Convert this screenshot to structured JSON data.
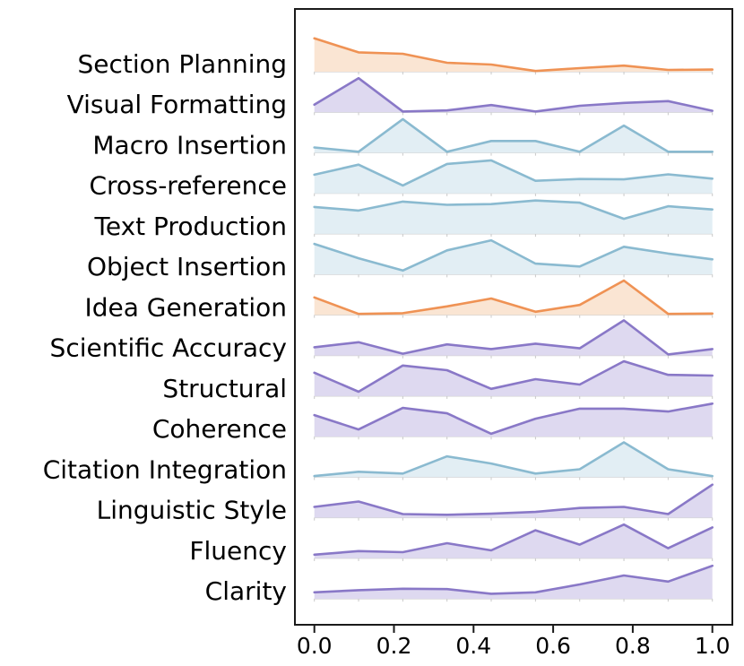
{
  "chart_data": {
    "type": "area",
    "variant": "ridgeline",
    "title": "",
    "xlabel": "",
    "ylabel": "",
    "xlim": [
      0,
      1
    ],
    "grid": false,
    "legend": "none",
    "x": [
      0,
      0.1111,
      0.2222,
      0.3333,
      0.4444,
      0.5556,
      0.6667,
      0.7778,
      0.8889,
      1.0
    ],
    "x_tick_values": [
      0,
      0.2,
      0.4,
      0.6,
      0.8,
      1.0
    ],
    "x_tick_labels": [
      "0.0",
      "0.2",
      "0.4",
      "0.6",
      "0.8",
      "1.0"
    ],
    "categories": [
      "Section Planning",
      "Visual Formatting",
      "Macro Insertion",
      "Cross-reference",
      "Text Production",
      "Object Insertion",
      "Idea Generation",
      "Scientific Accuracy",
      "Structural",
      "Coherence",
      "Citation Integration",
      "Linguistic Style",
      "Fluency",
      "Clarity"
    ],
    "series": [
      {
        "name": "Section Planning",
        "color": "orange",
        "values": [
          0.93,
          0.54,
          0.5,
          0.25,
          0.2,
          0.02,
          0.1,
          0.17,
          0.05,
          0.06
        ]
      },
      {
        "name": "Visual Formatting",
        "color": "purple",
        "values": [
          0.21,
          0.95,
          0.02,
          0.05,
          0.2,
          0.02,
          0.18,
          0.26,
          0.31,
          0.04
        ]
      },
      {
        "name": "Macro Insertion",
        "color": "blue",
        "values": [
          0.15,
          0.03,
          0.94,
          0.03,
          0.33,
          0.33,
          0.03,
          0.76,
          0.03,
          0.03
        ]
      },
      {
        "name": "Cross-reference",
        "color": "blue",
        "values": [
          0.52,
          0.8,
          0.22,
          0.82,
          0.92,
          0.35,
          0.4,
          0.39,
          0.53,
          0.41
        ]
      },
      {
        "name": "Text Production",
        "color": "blue",
        "values": [
          0.75,
          0.65,
          0.9,
          0.81,
          0.83,
          0.93,
          0.87,
          0.42,
          0.77,
          0.68
        ]
      },
      {
        "name": "Object Insertion",
        "color": "blue",
        "values": [
          0.85,
          0.45,
          0.11,
          0.67,
          0.95,
          0.3,
          0.22,
          0.77,
          0.58,
          0.42
        ]
      },
      {
        "name": "Idea Generation",
        "color": "orange",
        "values": [
          0.49,
          0.03,
          0.05,
          0.24,
          0.46,
          0.09,
          0.28,
          0.96,
          0.03,
          0.04
        ]
      },
      {
        "name": "Scientific Accuracy",
        "color": "purple",
        "values": [
          0.23,
          0.37,
          0.05,
          0.31,
          0.18,
          0.33,
          0.2,
          0.98,
          0.03,
          0.18
        ]
      },
      {
        "name": "Structural",
        "color": "purple",
        "values": [
          0.65,
          0.12,
          0.85,
          0.72,
          0.2,
          0.47,
          0.32,
          0.97,
          0.59,
          0.57
        ]
      },
      {
        "name": "Coherence",
        "color": "purple",
        "values": [
          0.6,
          0.2,
          0.8,
          0.65,
          0.08,
          0.5,
          0.78,
          0.78,
          0.7,
          0.92
        ]
      },
      {
        "name": "Citation Integration",
        "color": "blue",
        "values": [
          0.03,
          0.15,
          0.1,
          0.58,
          0.38,
          0.1,
          0.22,
          0.97,
          0.22,
          0.03
        ]
      },
      {
        "name": "Linguistic Style",
        "color": "purple",
        "values": [
          0.3,
          0.45,
          0.1,
          0.08,
          0.11,
          0.16,
          0.27,
          0.3,
          0.1,
          0.92
        ]
      },
      {
        "name": "Fluency",
        "color": "purple",
        "values": [
          0.1,
          0.2,
          0.17,
          0.42,
          0.22,
          0.78,
          0.38,
          0.94,
          0.28,
          0.86
        ]
      },
      {
        "name": "Clarity",
        "color": "purple",
        "values": [
          0.18,
          0.24,
          0.28,
          0.27,
          0.14,
          0.18,
          0.4,
          0.65,
          0.48,
          0.92
        ]
      }
    ],
    "colors": {
      "orange": {
        "line": "#ef9254",
        "fill": "#fae5d3"
      },
      "purple": {
        "line": "#8978c7",
        "fill": "#ded9f0"
      },
      "blue": {
        "line": "#8abad0",
        "fill": "#e2eef4"
      },
      "baseline": "#d2d2d2",
      "minor_tick": "#c8c8c8",
      "frame": "#1a1a1a"
    }
  }
}
